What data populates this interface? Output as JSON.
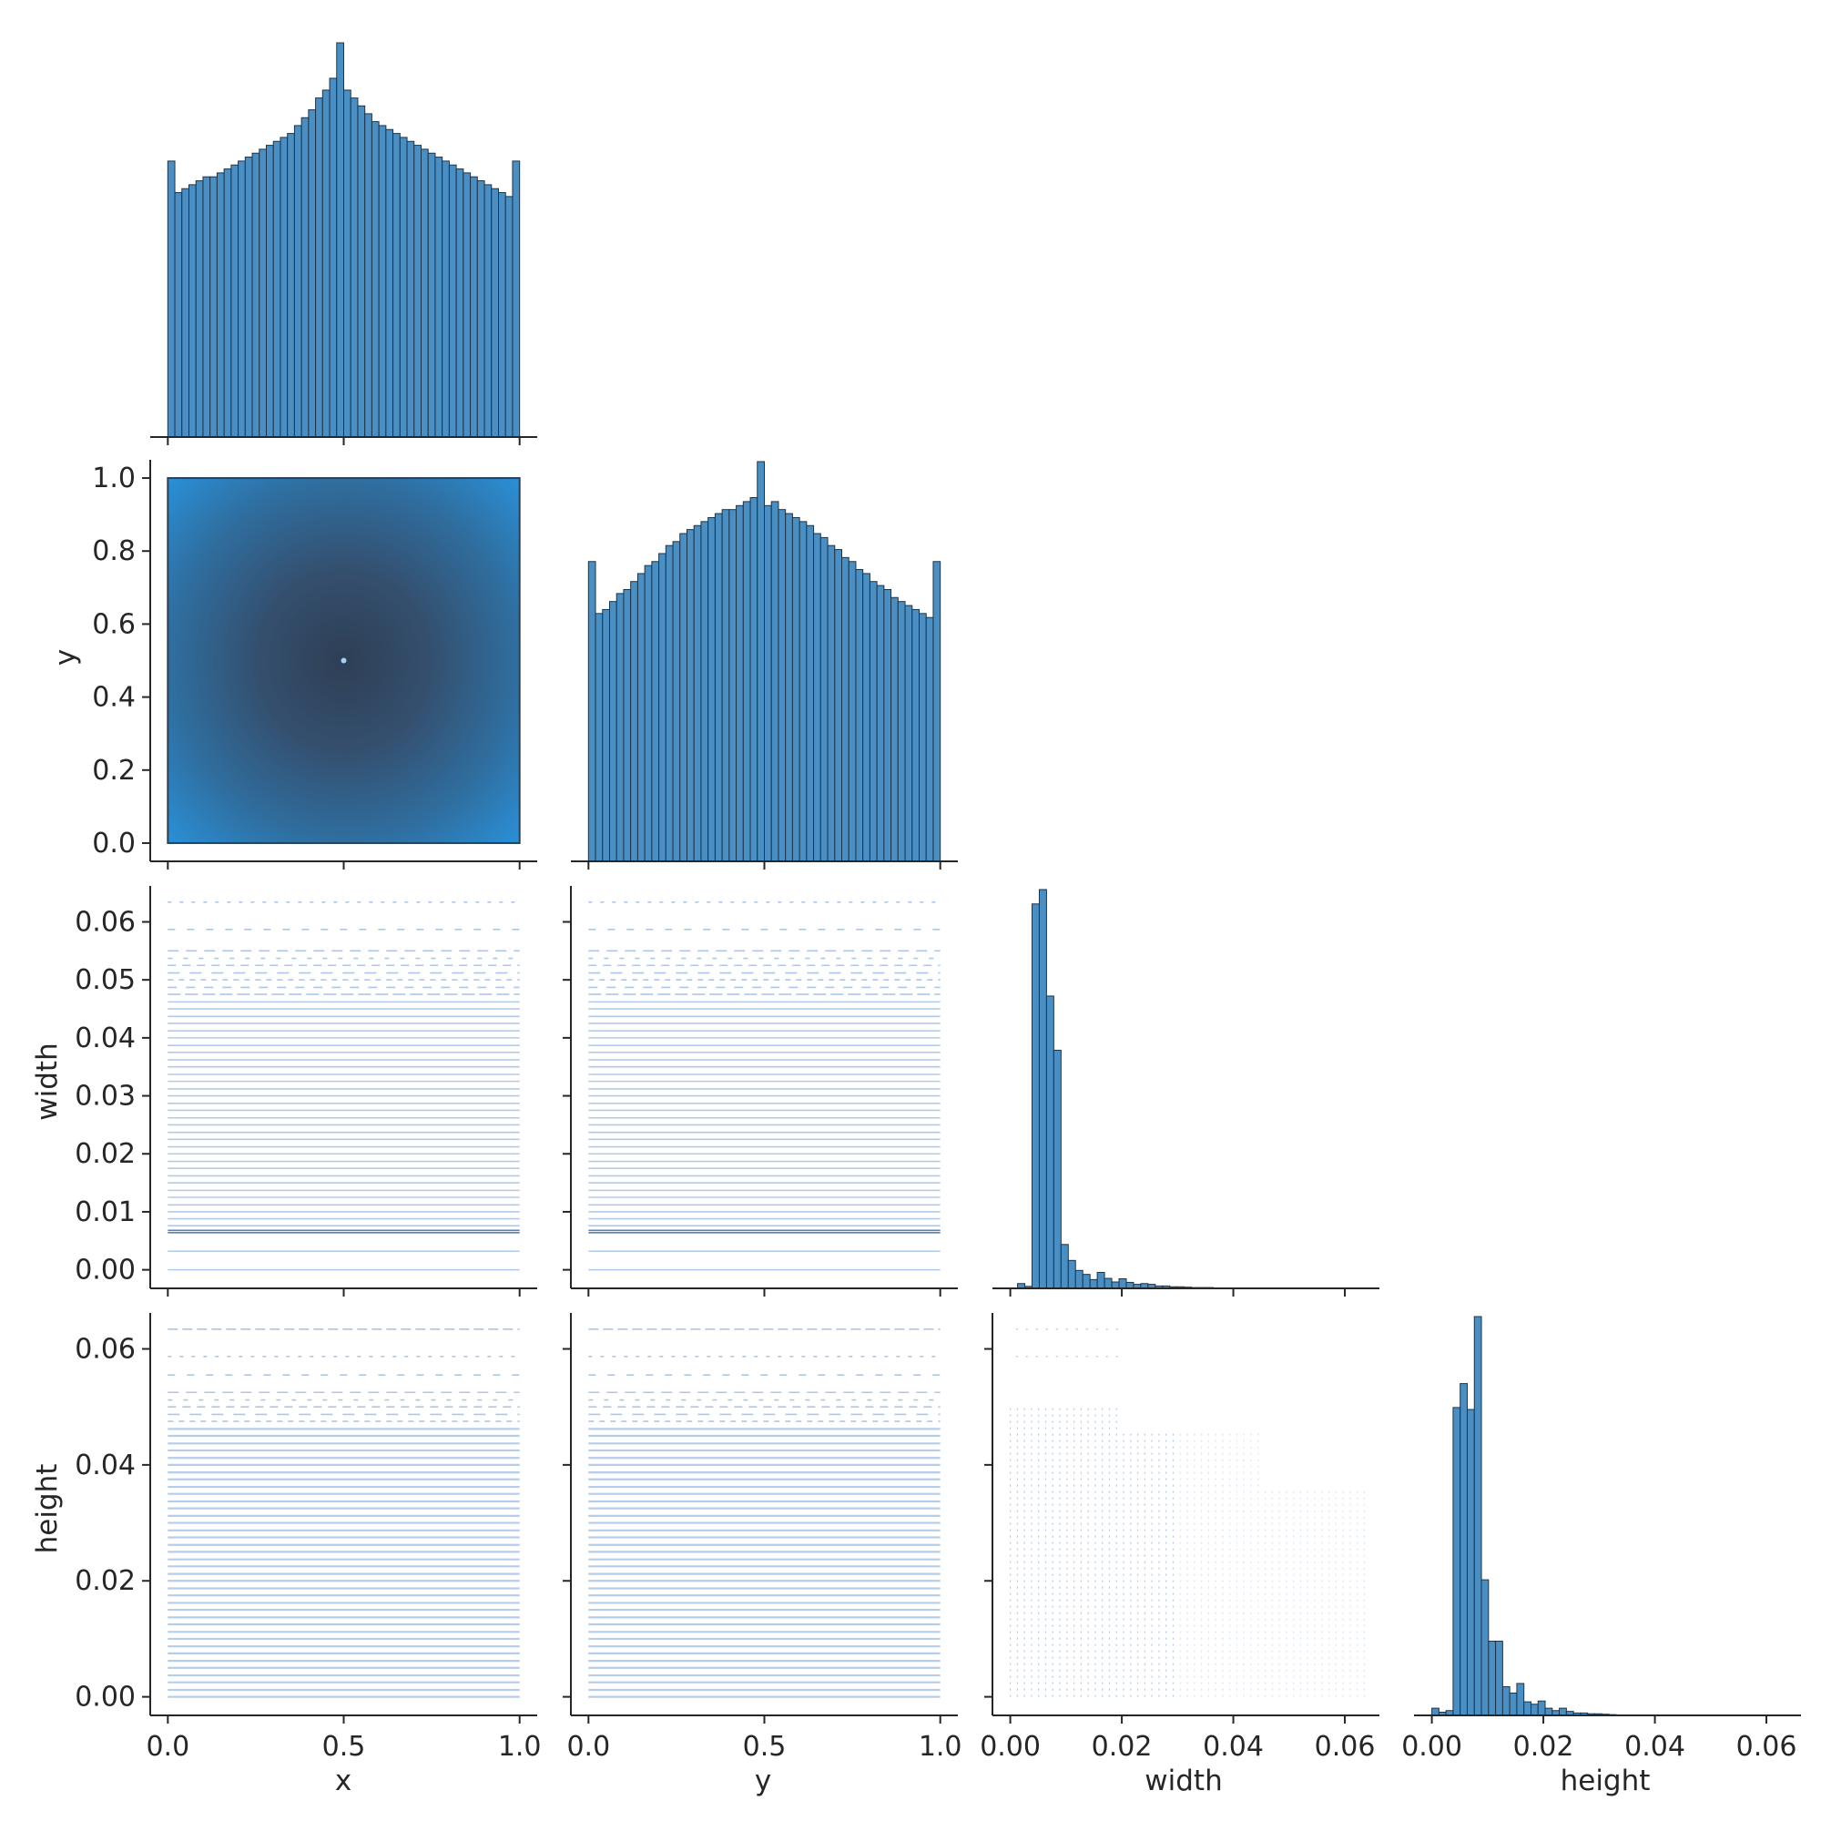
{
  "colors": {
    "bar_fill": "#4a8fc4",
    "bar_edge": "#1f3346",
    "scatter_light": "#aec7e8",
    "hist2d_edge": "#2a8fd6",
    "hist2d_center": "#35506d",
    "axis": "#262626"
  },
  "variables": [
    "x",
    "y",
    "width",
    "height"
  ],
  "tick_labels": {
    "xy": [
      "0.0",
      "0.5",
      "1.0"
    ],
    "xy_y": [
      "0.0",
      "0.2",
      "0.4",
      "0.6",
      "0.8",
      "1.0"
    ],
    "size": [
      "0.00",
      "0.02",
      "0.04",
      "0.06"
    ],
    "size_y": [
      "0.00",
      "0.01",
      "0.02",
      "0.03",
      "0.04",
      "0.05",
      "0.06"
    ],
    "size_h": [
      "0.00",
      "0.02",
      "0.04",
      "0.06"
    ]
  },
  "axis_labels": {
    "row_y": "y",
    "row_width": "width",
    "row_height": "height",
    "col_x": "x",
    "col_y": "y",
    "col_width": "width",
    "col_height": "height"
  },
  "chart_data": [
    {
      "type": "bar",
      "panel": "x-histogram",
      "xlim": [
        -0.05,
        1.05
      ],
      "bins": 50,
      "bin_range": [
        0,
        1
      ],
      "relative_heights": [
        0.7,
        0.62,
        0.63,
        0.64,
        0.65,
        0.66,
        0.66,
        0.67,
        0.68,
        0.69,
        0.7,
        0.71,
        0.72,
        0.73,
        0.74,
        0.75,
        0.76,
        0.77,
        0.79,
        0.81,
        0.83,
        0.86,
        0.88,
        0.91,
        1.0,
        0.88,
        0.86,
        0.84,
        0.82,
        0.8,
        0.79,
        0.78,
        0.77,
        0.76,
        0.75,
        0.74,
        0.73,
        0.72,
        0.71,
        0.7,
        0.69,
        0.68,
        0.67,
        0.66,
        0.65,
        0.64,
        0.63,
        0.62,
        0.61,
        0.7
      ]
    },
    {
      "type": "heatmap",
      "panel": "y-vs-x",
      "xlabel": "",
      "ylabel": "y",
      "xlim": [
        -0.05,
        1.05
      ],
      "ylim": [
        -0.05,
        1.05
      ],
      "x_range": [
        0,
        1
      ],
      "y_range": [
        0,
        1
      ],
      "peak": [
        0.5,
        0.5
      ]
    },
    {
      "type": "bar",
      "panel": "y-histogram",
      "xlim": [
        -0.05,
        1.05
      ],
      "bins": 50,
      "bin_range": [
        0,
        1
      ],
      "relative_heights": [
        0.75,
        0.62,
        0.63,
        0.65,
        0.67,
        0.68,
        0.7,
        0.72,
        0.74,
        0.75,
        0.77,
        0.79,
        0.8,
        0.82,
        0.83,
        0.84,
        0.85,
        0.86,
        0.87,
        0.88,
        0.88,
        0.89,
        0.9,
        0.91,
        1.0,
        0.89,
        0.9,
        0.88,
        0.87,
        0.86,
        0.85,
        0.84,
        0.82,
        0.81,
        0.79,
        0.78,
        0.76,
        0.75,
        0.73,
        0.72,
        0.7,
        0.69,
        0.68,
        0.66,
        0.65,
        0.64,
        0.63,
        0.62,
        0.61,
        0.75
      ]
    },
    {
      "type": "scatter",
      "panel": "width-vs-x",
      "ylabel": "width",
      "xlim": [
        -0.05,
        1.05
      ],
      "ylim": [
        -0.0032,
        0.0662
      ],
      "y_levels": [
        0.0,
        0.0032,
        0.0064,
        0.0068,
        0.0076,
        0.0088,
        0.01,
        0.0112,
        0.0125,
        0.0137,
        0.015,
        0.0162,
        0.0175,
        0.0187,
        0.02,
        0.0212,
        0.0225,
        0.0237,
        0.025,
        0.0262,
        0.0275,
        0.0287,
        0.03,
        0.0312,
        0.0325,
        0.0337,
        0.035,
        0.0362,
        0.0375,
        0.0387,
        0.04,
        0.0412,
        0.0425,
        0.0437,
        0.045,
        0.0462,
        0.0475,
        0.0487,
        0.05,
        0.0512,
        0.0525,
        0.0537,
        0.055,
        0.0587,
        0.0634
      ]
    },
    {
      "type": "scatter",
      "panel": "width-vs-y",
      "xlim": [
        -0.05,
        1.05
      ],
      "ylim": [
        -0.0032,
        0.0662
      ],
      "y_levels": [
        0.0,
        0.0032,
        0.0064,
        0.0068,
        0.0076,
        0.0088,
        0.01,
        0.0112,
        0.0125,
        0.0137,
        0.015,
        0.0162,
        0.0175,
        0.0187,
        0.02,
        0.0212,
        0.0225,
        0.0237,
        0.025,
        0.0262,
        0.0275,
        0.0287,
        0.03,
        0.0312,
        0.0325,
        0.0337,
        0.035,
        0.0362,
        0.0375,
        0.0387,
        0.04,
        0.0412,
        0.0425,
        0.0437,
        0.045,
        0.0462,
        0.0475,
        0.0487,
        0.05,
        0.0512,
        0.0525,
        0.0537,
        0.055,
        0.0587,
        0.0634
      ]
    },
    {
      "type": "bar",
      "panel": "width-histogram",
      "xlim": [
        -0.0032,
        0.0662
      ],
      "bin_edges": [
        0.0,
        0.00127,
        0.00254,
        0.00381,
        0.00508,
        0.00635,
        0.00762,
        0.00889,
        0.01016,
        0.01143,
        0.0127,
        0.01397,
        0.01524,
        0.01651,
        0.01778,
        0.01905,
        0.02032,
        0.02159,
        0.02286,
        0.02413,
        0.0254,
        0.02667,
        0.02794,
        0.02921,
        0.03048,
        0.03175,
        0.03302,
        0.03429,
        0.03556,
        0.03683,
        0.0381,
        0.03937,
        0.04064,
        0.04191,
        0.04318,
        0.04445,
        0.04572,
        0.04699,
        0.04826,
        0.04953,
        0.0508,
        0.05207,
        0.05334,
        0.05461,
        0.05588,
        0.05715,
        0.05842,
        0.05969,
        0.06096,
        0.06223,
        0.0635
      ],
      "relative_heights": [
        0.01,
        0.0,
        0.0,
        0.0,
        0.0,
        0.0,
        0.0,
        0.0,
        0.0,
        0.0,
        0.0,
        0.0,
        0.0,
        0.0,
        0.0,
        0.0,
        0.0,
        0.0,
        0.0,
        0.0,
        0.0,
        0.0,
        0.0,
        0.0,
        0.0,
        0.0,
        0.0,
        0.0,
        0.0,
        0.0,
        0.0,
        0.0,
        0.0,
        0.0,
        0.0,
        0.0,
        0.0,
        0.0,
        0.0,
        0.0,
        0.0,
        0.0,
        0.0,
        0.0,
        0.0,
        0.0,
        0.0,
        0.0,
        0.0,
        0.0
      ],
      "bars": [
        {
          "x": 0.0013,
          "h": 0.012
        },
        {
          "x": 0.0026,
          "h": 0.005
        },
        {
          "x": 0.0039,
          "h": 0.964
        },
        {
          "x": 0.0052,
          "h": 1.0
        },
        {
          "x": 0.0065,
          "h": 0.733
        },
        {
          "x": 0.0078,
          "h": 0.597
        },
        {
          "x": 0.0091,
          "h": 0.11
        },
        {
          "x": 0.0104,
          "h": 0.07
        },
        {
          "x": 0.0117,
          "h": 0.045
        },
        {
          "x": 0.013,
          "h": 0.035
        },
        {
          "x": 0.0143,
          "h": 0.022
        },
        {
          "x": 0.0156,
          "h": 0.04
        },
        {
          "x": 0.0169,
          "h": 0.025
        },
        {
          "x": 0.0182,
          "h": 0.016
        },
        {
          "x": 0.0195,
          "h": 0.024
        },
        {
          "x": 0.0208,
          "h": 0.015
        },
        {
          "x": 0.0221,
          "h": 0.01
        },
        {
          "x": 0.0234,
          "h": 0.012
        },
        {
          "x": 0.0247,
          "h": 0.01
        },
        {
          "x": 0.026,
          "h": 0.006
        },
        {
          "x": 0.0273,
          "h": 0.006
        },
        {
          "x": 0.0286,
          "h": 0.004
        },
        {
          "x": 0.0299,
          "h": 0.004
        },
        {
          "x": 0.0312,
          "h": 0.003
        },
        {
          "x": 0.0325,
          "h": 0.002
        },
        {
          "x": 0.0338,
          "h": 0.002
        },
        {
          "x": 0.0351,
          "h": 0.002
        },
        {
          "x": 0.0364,
          "h": 0.001
        }
      ]
    },
    {
      "type": "scatter",
      "panel": "height-vs-x",
      "ylabel": "height",
      "xlabel": "x",
      "xlim": [
        -0.05,
        1.05
      ],
      "ylim": [
        -0.0032,
        0.0662
      ],
      "y_levels": [
        0.0,
        0.0012,
        0.0025,
        0.0037,
        0.005,
        0.0062,
        0.0075,
        0.0087,
        0.01,
        0.0112,
        0.0125,
        0.0137,
        0.015,
        0.0162,
        0.0175,
        0.0187,
        0.02,
        0.0212,
        0.0225,
        0.0237,
        0.025,
        0.0262,
        0.0275,
        0.0287,
        0.03,
        0.0312,
        0.0325,
        0.0337,
        0.035,
        0.0362,
        0.0375,
        0.0387,
        0.04,
        0.0412,
        0.0425,
        0.0437,
        0.045,
        0.0462,
        0.0475,
        0.0487,
        0.05,
        0.0512,
        0.0525,
        0.0555,
        0.0587,
        0.0634
      ]
    },
    {
      "type": "scatter",
      "panel": "height-vs-y",
      "xlabel": "y",
      "xlim": [
        -0.05,
        1.05
      ],
      "ylim": [
        -0.0032,
        0.0662
      ],
      "y_levels": [
        0.0,
        0.0012,
        0.0025,
        0.0037,
        0.005,
        0.0062,
        0.0075,
        0.0087,
        0.01,
        0.0112,
        0.0125,
        0.0137,
        0.015,
        0.0162,
        0.0175,
        0.0187,
        0.02,
        0.0212,
        0.0225,
        0.0237,
        0.025,
        0.0262,
        0.0275,
        0.0287,
        0.03,
        0.0312,
        0.0325,
        0.0337,
        0.035,
        0.0362,
        0.0375,
        0.0387,
        0.04,
        0.0412,
        0.0425,
        0.0437,
        0.045,
        0.0462,
        0.0475,
        0.0487,
        0.05,
        0.0512,
        0.0525,
        0.0555,
        0.0587,
        0.0634
      ]
    },
    {
      "type": "scatter",
      "panel": "height-vs-width",
      "xlabel": "width",
      "xlim": [
        -0.0032,
        0.0662
      ],
      "ylim": [
        -0.0032,
        0.0662
      ],
      "x_range": [
        0,
        0.0635
      ],
      "y_range": [
        0,
        0.0635
      ]
    },
    {
      "type": "bar",
      "panel": "height-histogram",
      "xlabel": "height",
      "xlim": [
        -0.0032,
        0.0662
      ],
      "bars": [
        {
          "x": 0.0,
          "h": 0.018
        },
        {
          "x": 0.00127,
          "h": 0.008
        },
        {
          "x": 0.00254,
          "h": 0.012
        },
        {
          "x": 0.00381,
          "h": 0.772
        },
        {
          "x": 0.00508,
          "h": 0.832
        },
        {
          "x": 0.00635,
          "h": 0.767
        },
        {
          "x": 0.00762,
          "h": 1.0
        },
        {
          "x": 0.00889,
          "h": 0.34
        },
        {
          "x": 0.01016,
          "h": 0.186
        },
        {
          "x": 0.01143,
          "h": 0.186
        },
        {
          "x": 0.0127,
          "h": 0.072
        },
        {
          "x": 0.01397,
          "h": 0.056
        },
        {
          "x": 0.01524,
          "h": 0.08
        },
        {
          "x": 0.01651,
          "h": 0.034
        },
        {
          "x": 0.01778,
          "h": 0.028
        },
        {
          "x": 0.01905,
          "h": 0.036
        },
        {
          "x": 0.02032,
          "h": 0.018
        },
        {
          "x": 0.02159,
          "h": 0.012
        },
        {
          "x": 0.02286,
          "h": 0.018
        },
        {
          "x": 0.02413,
          "h": 0.01
        },
        {
          "x": 0.0254,
          "h": 0.006
        },
        {
          "x": 0.02667,
          "h": 0.006
        },
        {
          "x": 0.02794,
          "h": 0.004
        },
        {
          "x": 0.02921,
          "h": 0.004
        },
        {
          "x": 0.03048,
          "h": 0.003
        },
        {
          "x": 0.03175,
          "h": 0.002
        }
      ]
    }
  ]
}
